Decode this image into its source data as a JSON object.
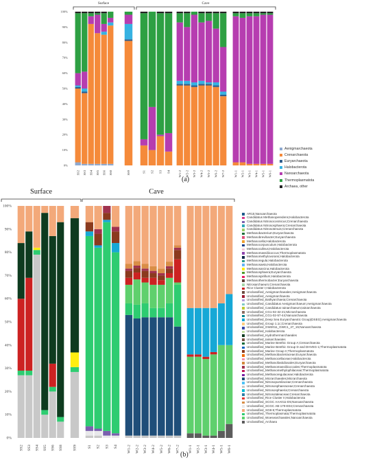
{
  "chart_data": [
    {
      "panel_label": "(a)",
      "type": "bar",
      "stacked": true,
      "group_labels": [
        "Surface",
        "Cave"
      ],
      "yticks": [
        "0%",
        "10%",
        "20%",
        "30%",
        "40%",
        "50%",
        "60%",
        "70%",
        "80%",
        "90%",
        "100%"
      ],
      "categories": [
        "SS2",
        "SS3",
        "SS4",
        "SS5",
        "SS6",
        "SS8",
        "SS9",
        "S1",
        "S2",
        "S3",
        "S4",
        "W1-2",
        "W2-2",
        "W3-2",
        "W4-2",
        "W5-2",
        "W6-2",
        "W7-2",
        "W1-1",
        "W2-1",
        "W3-1",
        "W4-1",
        "W5-1",
        "W6-1"
      ],
      "groups": [
        [
          0,
          5
        ],
        [
          6,
          6
        ],
        [
          7,
          10
        ],
        [
          11,
          17
        ],
        [
          18,
          23
        ]
      ],
      "series": [
        {
          "name": "Aenigmarchaeota",
          "color": "#8ea9cf",
          "values": [
            2,
            1,
            1,
            1,
            1,
            1,
            0,
            0,
            0,
            0,
            0,
            0,
            0,
            0,
            0,
            0,
            0,
            0,
            0,
            0,
            0,
            0,
            0,
            0
          ]
        },
        {
          "name": "Crenarchaeota",
          "color": "#f58a3a",
          "values": [
            48,
            46,
            91,
            85,
            84,
            90,
            81,
            13,
            10,
            19,
            9,
            52,
            52,
            51,
            52,
            52,
            51,
            45,
            2,
            2,
            1,
            1,
            1,
            1
          ]
        },
        {
          "name": "Euryarchaeota",
          "color": "#2e5c8a",
          "values": [
            1,
            1,
            0,
            0,
            0,
            0,
            1,
            0,
            0,
            0,
            0,
            1,
            1,
            1,
            1,
            1,
            1,
            1,
            0,
            0,
            0,
            0,
            0,
            0
          ]
        },
        {
          "name": "Halobacterota",
          "color": "#36b2e2",
          "values": [
            1,
            2,
            0,
            0,
            2,
            2,
            10,
            0,
            0,
            0,
            0,
            2,
            2,
            2,
            2,
            1,
            2,
            2,
            0,
            0,
            0,
            0,
            0,
            0
          ]
        },
        {
          "name": "Nanoarchaeota",
          "color": "#b63db0",
          "values": [
            8,
            11,
            5,
            12,
            5,
            3,
            6,
            4,
            28,
            1,
            12,
            38,
            35,
            44,
            38,
            40,
            35,
            29,
            95,
            94,
            96,
            96,
            97,
            97
          ]
        },
        {
          "name": "Thermoplasmatota",
          "color": "#2ea043",
          "values": [
            39,
            38,
            2,
            1,
            7,
            4,
            2,
            82,
            62,
            79,
            78,
            6,
            9,
            2,
            6,
            5,
            10,
            22,
            2,
            3,
            2,
            2,
            1,
            1
          ]
        },
        {
          "name": "Archaea, other",
          "color": "#222222",
          "values": [
            1,
            1,
            1,
            1,
            1,
            0,
            0,
            1,
            0,
            1,
            1,
            1,
            1,
            0,
            1,
            1,
            1,
            1,
            1,
            1,
            1,
            1,
            1,
            1
          ]
        }
      ]
    },
    {
      "panel_label": "(b)",
      "type": "bar",
      "stacked": true,
      "group_labels": [
        "Surface",
        "Cave"
      ],
      "yticks": [
        "0%",
        "10%",
        "20%",
        "30%",
        "40%",
        "50%",
        "60%",
        "70%",
        "80%",
        "90%",
        "100%"
      ],
      "categories": [
        "SS2",
        "SS3",
        "SS4",
        "SS5",
        "SS6",
        "SS8",
        "SS9",
        "S1",
        "S2",
        "S3",
        "S4",
        "W1-2",
        "W2-2",
        "W3-2",
        "W4-2",
        "W5-2",
        "W6-2",
        "W7-2",
        "W1-1",
        "W2-1",
        "W3-1",
        "W4-1",
        "W5-1",
        "W6-1"
      ],
      "groups": [
        [
          0,
          5
        ],
        [
          6,
          6
        ],
        [
          7,
          10
        ],
        [
          11,
          17
        ],
        [
          18,
          23
        ]
      ],
      "series": [
        {
          "name": "Unclassified_Nitrososphaeraceae;Crenarchaeota",
          "color": "#c8c8c8",
          "values": [
            27,
            27,
            79,
            10,
            20,
            7,
            27,
            1,
            1,
            0,
            0,
            1,
            1,
            1,
            1,
            1,
            1,
            1,
            0,
            0,
            0,
            0,
            0,
            0
          ]
        },
        {
          "name": "Unclassified_SCGC AB-179-E04;Crenarchaeota",
          "color": "#e8e8ea",
          "values": [
            0,
            0,
            0,
            0,
            0,
            0,
            0,
            2,
            2,
            1,
            1,
            0,
            0,
            0,
            0,
            0,
            0,
            0,
            0,
            0,
            0,
            0,
            0,
            0
          ]
        },
        {
          "name": "Unclassified_Archaea",
          "color": "#5c5c5c",
          "values": [
            0,
            0,
            0,
            0,
            0,
            0,
            0,
            0,
            0,
            0,
            0,
            0,
            0,
            0,
            0,
            0,
            0,
            0,
            2,
            2,
            1,
            1,
            3,
            6
          ]
        },
        {
          "name": "Unclassified_Micrarchaeales;Micrarchaeota",
          "color": "#1f4e79",
          "values": [
            0,
            0,
            0,
            0,
            0,
            0,
            0,
            0,
            0,
            0,
            0,
            52,
            51,
            51,
            51,
            51,
            51,
            47,
            0,
            0,
            0,
            0,
            0,
            0
          ]
        },
        {
          "name": "Candidatus Nitrosocosmicus;Crenarchaeota",
          "color": "#7a5fae",
          "values": [
            0,
            0,
            0,
            0,
            0,
            0,
            0,
            2,
            1,
            2,
            1,
            0,
            0,
            0,
            0,
            0,
            0,
            0,
            0,
            0,
            0,
            0,
            0,
            0
          ]
        },
        {
          "name": "Unclassified_Thermoplasmata;Thermoplasmatota",
          "color": "#2ecc71",
          "values": [
            2,
            2,
            2,
            2,
            2,
            2,
            2,
            82,
            78,
            90,
            78,
            5,
            6,
            6,
            4,
            4,
            6,
            18,
            0,
            0,
            0,
            0,
            0,
            0
          ]
        },
        {
          "name": "Unclassified_Woesearchaeales;Nanoarchaeota",
          "color": "#5fd06d",
          "values": [
            0,
            0,
            0,
            0,
            0,
            0,
            0,
            0,
            0,
            0,
            0,
            8,
            11,
            9,
            10,
            10,
            11,
            1,
            33,
            33,
            33,
            35,
            37,
            34
          ]
        },
        {
          "name": "Rice Cluster I;Halobacterota",
          "color": "#cc2222",
          "values": [
            31,
            40,
            0,
            0,
            10,
            0,
            0,
            0,
            0,
            0,
            0,
            3,
            3,
            2,
            3,
            2,
            2,
            10,
            1,
            1,
            1,
            1,
            0,
            0
          ]
        },
        {
          "name": "Methanosarcina;Halobacterota",
          "color": "#ffee11",
          "values": [
            0,
            0,
            1,
            0,
            0,
            0,
            6,
            0,
            0,
            0,
            0,
            0,
            0,
            0,
            0,
            0,
            0,
            0,
            0,
            0,
            0,
            0,
            0,
            0
          ]
        },
        {
          "name": "Unclassified_Deep Sea Euryarchaeotic Group(DSEG);Aenigmarchaeota",
          "color": "#16a8d6",
          "values": [
            0,
            0,
            0,
            0,
            0,
            0,
            0,
            2,
            1,
            1,
            4,
            0,
            0,
            0,
            0,
            0,
            0,
            0,
            20,
            20,
            21,
            19,
            18,
            22
          ]
        },
        {
          "name": "Unclassified_Marine Group II;Thermoplasmatota",
          "color": "#8b3a1e",
          "values": [
            0,
            0,
            0,
            0,
            0,
            0,
            0,
            4,
            5,
            3,
            5,
            3,
            2,
            3,
            2,
            2,
            2,
            4,
            0,
            0,
            0,
            0,
            0,
            0
          ]
        },
        {
          "name": "Unclassified_Methanomassiliicoccales;Thermoplasmatota",
          "color": "#a0324f",
          "values": [
            0,
            0,
            0,
            0,
            0,
            0,
            0,
            0,
            2,
            3,
            2,
            1,
            1,
            1,
            1,
            1,
            1,
            1,
            0,
            0,
            0,
            0,
            0,
            0
          ]
        },
        {
          "name": "Unclassified_SCGC AAA011-D5;Nanoarchaeota",
          "color": "#d98e47",
          "values": [
            0,
            0,
            0,
            0,
            0,
            0,
            0,
            0,
            0,
            0,
            0,
            2,
            2,
            2,
            2,
            2,
            2,
            1,
            0,
            0,
            0,
            0,
            0,
            0
          ]
        },
        {
          "name": "Unclassified_Hydrothermarchaeales",
          "color": "#0e3b1f",
          "values": [
            24,
            20,
            0,
            85,
            55,
            84,
            55,
            0,
            0,
            0,
            0,
            0,
            0,
            0,
            0,
            0,
            0,
            0,
            0,
            0,
            0,
            0,
            0,
            0
          ]
        },
        {
          "name": "Unclassified_Marine Benthic Group A;Crenarchaeota",
          "color": "#0b6b3a",
          "values": [
            0,
            0,
            0,
            0,
            0,
            0,
            0,
            0,
            0,
            0,
            0,
            0,
            0,
            0,
            0,
            0,
            0,
            0,
            0,
            0,
            0,
            0,
            0,
            0
          ]
        },
        {
          "name": "Unclassified_Nitrosotaleaceae;Crenarchaeota",
          "color": "#2f7fa6",
          "values": [
            0,
            0,
            0,
            0,
            0,
            0,
            0,
            0,
            0,
            0,
            0,
            0,
            0,
            0,
            0,
            0,
            0,
            0,
            0,
            0,
            0,
            0,
            0,
            0
          ]
        },
        {
          "name": "Unclassified_SG8-5;Thermoplasmatota",
          "color": "#f3a97a",
          "values": [
            16,
            11,
            18,
            3,
            13,
            7,
            5,
            7,
            10,
            0,
            9,
            25,
            24,
            25,
            26,
            27,
            24,
            17,
            44,
            44,
            44,
            44,
            42,
            38
          ]
        }
      ]
    }
  ],
  "legend_b": [
    {
      "label": "AR15;Nanoarchaeota",
      "color": "#1e5a8c"
    },
    {
      "label": "Candidatus Methanoperedens;Halobacterota",
      "color": "#d63b8c"
    },
    {
      "label": "Candidatus Nitrosocosmicus;Crenarchaeota",
      "color": "#7a5fae"
    },
    {
      "label": "Candidatus Nitrososphaera;Crenarchaeota",
      "color": "#2fa8b8"
    },
    {
      "label": "Candidatus Nitrosotenuis;Crenarchaeota",
      "color": "#9ccf6a"
    },
    {
      "label": "Methanobacterium;Euryarchaeota",
      "color": "#1d6e3a"
    },
    {
      "label": "Methanobrevibacter;Euryarchaeota",
      "color": "#e0507a"
    },
    {
      "label": "Methanocella;Halobacterota",
      "color": "#f0a030"
    },
    {
      "label": "Methanocorpusculum;Halobacterota",
      "color": "#1b3f8b"
    },
    {
      "label": "Methanoculleus;Halobacterota",
      "color": "#f2c6d8"
    },
    {
      "label": "Methanomassiliicoccus;Thermoplasmatota",
      "color": "#8e44ad"
    },
    {
      "label": "Methanomethylovorans;Halobacterota",
      "color": "#0f2a4a"
    },
    {
      "label": "Methanoregula;Halobacterota",
      "color": "#2a9d8f"
    },
    {
      "label": "Methanosaeta;Halobacterota",
      "color": "#64b5f6"
    },
    {
      "label": "Methanosarcina;Halobacterota",
      "color": "#ffee11"
    },
    {
      "label": "Methanosphaera;Euryarchaeota",
      "color": "#4c9a2a"
    },
    {
      "label": "Methanospirillum;Halobacterota",
      "color": "#e91e63"
    },
    {
      "label": "Methanothermobacter;Euryarchaeota",
      "color": "#5d4037"
    },
    {
      "label": "Nitrosarchaeum;Crenarchaeota",
      "color": "#a5d6a7"
    },
    {
      "label": "Rice Cluster I;Halobacterota",
      "color": "#cc2222"
    },
    {
      "label": "Unclassified_Aenigmarchaeales;Aenigmarchaeota",
      "color": "#6d4c41"
    },
    {
      "label": "Unclassified_Aenigmarchaeota",
      "color": "#9e1b32"
    },
    {
      "label": "Unclassified_Bathyarchaeia;Crenarchaeota",
      "color": "#b39ddb"
    },
    {
      "label": "Unclassified_Candidatus Aenigmarchaeum;Aenigmarchaeota",
      "color": "#80cbc4"
    },
    {
      "label": "Unclassified_Candidatus Iainarchaeum;Iainarchaeota",
      "color": "#c0ca33"
    },
    {
      "label": "Unclassified_CG1-02-32-21;Micrarchaeota",
      "color": "#8d6e63"
    },
    {
      "label": "Unclassified_CG1-02-57-44;Nanoarchaeota",
      "color": "#00838f"
    },
    {
      "label": "Unclassified_Deep Sea Euryarchaeotic Group(DSEG);Aenigmarchaeota",
      "color": "#16a8d6"
    },
    {
      "label": "Unclassified_Group 1.1c;Crenarchaeota",
      "color": "#ffcc80"
    },
    {
      "label": "Unclassified_GW2011_GWC1_47_15;Nanoarchaeota",
      "color": "#3949ab"
    },
    {
      "label": "Unclassified_Halobacterota",
      "color": "#c5e1a5"
    },
    {
      "label": "Unclassified_Hydrothermarchaeales",
      "color": "#0e3b1f"
    },
    {
      "label": "Unclassified_Iainarchaeales",
      "color": "#795548"
    },
    {
      "label": "Unclassified_Marine Benthic Group A;Crenarchaeota",
      "color": "#0b6b3a"
    },
    {
      "label": "Unclassified_Marine Benthic Group D and DHVEG-1;Thermoplasmatota",
      "color": "#1565c0"
    },
    {
      "label": "Unclassified_Marine Group II;Thermoplasmatota",
      "color": "#8b3a1e"
    },
    {
      "label": "Unclassified_Methanobacteriaceae;Euryarchaeota",
      "color": "#ef6c00"
    },
    {
      "label": "Unclassified_Methanocellaceae;Halobacterota",
      "color": "#f48fb1"
    },
    {
      "label": "Unclassified_Methanofastidiosales;Euryarchaeota",
      "color": "#d4883c"
    },
    {
      "label": "Unclassified_Methanomassiliicoccales;Thermoplasmatota",
      "color": "#a0324f"
    },
    {
      "label": "Unclassified_Methanomethylophilaceae;Thermoplasmatota",
      "color": "#c2185b"
    },
    {
      "label": "Unclassified_Methanoregulaceae;Halobacterota",
      "color": "#7b1fa2"
    },
    {
      "label": "Unclassified_Micrarchaeales;Micrarchaeota",
      "color": "#1f4e79"
    },
    {
      "label": "Unclassified_Nitrosopumilaceae;Crenarchaeota",
      "color": "#4fc3f7"
    },
    {
      "label": "Unclassified_Nitrososphaeraceae;Crenarchaeota",
      "color": "#c8c8c8"
    },
    {
      "label": "Unclassified_Nitrososphaeria;Crenarchaeota",
      "color": "#00bcd4"
    },
    {
      "label": "Unclassified_Nitrosotaleaceae;Crenarchaeota",
      "color": "#2f7fa6"
    },
    {
      "label": "Unclassified_Rice Cluster II;Halobacterota",
      "color": "#e53935"
    },
    {
      "label": "Unclassified_SCGC AAA011-D5;Nanoarchaeota",
      "color": "#d98e47"
    },
    {
      "label": "Unclassified_SCGC AB-179-E04;Crenarchaeota",
      "color": "#e8e8ea"
    },
    {
      "label": "Unclassified_SG8-5;Thermoplasmatota",
      "color": "#f3a97a"
    },
    {
      "label": "Unclassified_Thermoplasmata;Thermoplasmatota",
      "color": "#2ecc71"
    },
    {
      "label": "Unclassified_Woesearchaeales;Nanoarchaeota",
      "color": "#5fd06d"
    },
    {
      "label": "Unclassified_Archaea",
      "color": "#5c5c5c"
    }
  ]
}
